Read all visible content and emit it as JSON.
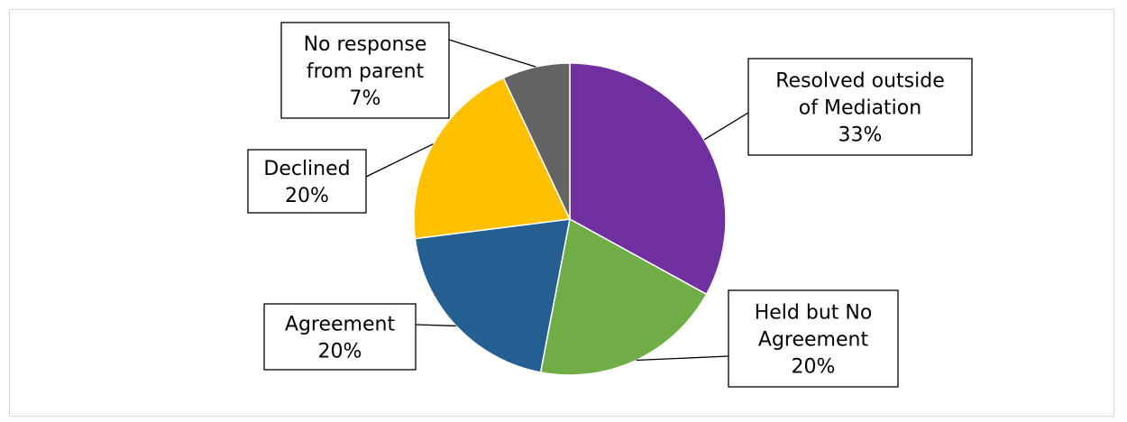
{
  "chart_data": {
    "type": "pie",
    "start_angle_deg": 0,
    "direction": "clockwise",
    "slices": [
      {
        "label_lines": [
          "Resolved outside",
          "of Mediation"
        ],
        "pct_label": "33%",
        "value": 33,
        "color": "#7030A0"
      },
      {
        "label_lines": [
          "Held but No",
          "Agreement"
        ],
        "pct_label": "20%",
        "value": 20,
        "color": "#70AD47"
      },
      {
        "label_lines": [
          "Agreement"
        ],
        "pct_label": "20%",
        "value": 20,
        "color": "#255E91"
      },
      {
        "label_lines": [
          "Declined"
        ],
        "pct_label": "20%",
        "value": 20,
        "color": "#FFC000"
      },
      {
        "label_lines": [
          "No response",
          "from parent"
        ],
        "pct_label": "7%",
        "value": 7,
        "color": "#636363"
      }
    ],
    "legend": "none"
  }
}
